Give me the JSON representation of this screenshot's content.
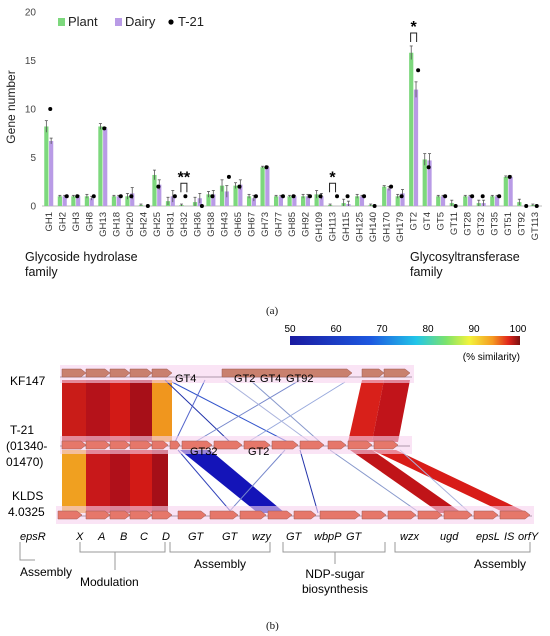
{
  "panel_a": {
    "caption": "(a)",
    "family_left": "Glycoside hydrolase family",
    "family_left_line1": "Glycoside hydrolase",
    "family_left_line2": "family",
    "family_right_line1": "Glycosyltransferase",
    "family_right_line2": "family"
  },
  "panel_b": {
    "caption": "(b)",
    "scale_label": "(% similarity)",
    "scale_ticks": [
      "50",
      "60",
      "70",
      "80",
      "90",
      "100"
    ],
    "strains": [
      {
        "name": "KF147"
      },
      {
        "name": "T-21",
        "sub1": "(01340-",
        "sub2": "01470)"
      },
      {
        "name": "KLDS",
        "sub1": "4.0325"
      }
    ],
    "kf147_gt_labels": [
      "GT4",
      "GT2",
      "GT4",
      "GT92"
    ],
    "t21_gt_labels": [
      "GT32",
      "GT2"
    ],
    "gene_labels": [
      "epsR",
      "X",
      "A",
      "B",
      "C",
      "D",
      "GT",
      "GT",
      "wzy",
      "GT",
      "wbpP",
      "GT",
      "wzx",
      "ugd",
      "epsL",
      "IS",
      "orfY"
    ],
    "function_groups": [
      "Assembly",
      "Modulation",
      "Assembly",
      "NDP-sugar biosynthesis",
      "Assembly"
    ],
    "ndp_line1": "NDP-sugar",
    "ndp_line2": "biosynthesis"
  },
  "chart_data": {
    "type": "bar",
    "ylabel": "Gene number",
    "ylim": [
      0,
      20
    ],
    "yticks": [
      0,
      5,
      10,
      15,
      20
    ],
    "categories": [
      "GH1",
      "GH2",
      "GH3",
      "GH8",
      "GH13",
      "GH18",
      "GH20",
      "GH24",
      "GH25",
      "GH31",
      "GH32",
      "GH36",
      "GH38",
      "GH43",
      "GH65",
      "GH67",
      "GH73",
      "GH77",
      "GH85",
      "GH92",
      "GH109",
      "GH113",
      "GH115",
      "GH125",
      "GH140",
      "GH170",
      "GH179",
      "GT2",
      "GT4",
      "GT5",
      "GT11",
      "GT28",
      "GT32",
      "GT35",
      "GT51",
      "GT92",
      "GT113"
    ],
    "series": [
      {
        "name": "Plant",
        "color": "#7dd87d",
        "values": [
          8.2,
          1,
          1,
          1,
          8.2,
          1,
          1,
          0.1,
          3.2,
          0.5,
          0.1,
          0.4,
          1.2,
          2.1,
          2.1,
          1,
          4,
          1,
          1,
          1,
          1.2,
          0.1,
          0.3,
          1,
          0.1,
          2,
          1,
          15.8,
          4.8,
          1,
          0.3,
          1,
          0.3,
          1,
          3,
          0.4,
          0.1
        ],
        "errors": [
          0.6,
          0.1,
          0.1,
          0.2,
          0.3,
          0.1,
          0.3,
          0.1,
          0.5,
          0.4,
          0.1,
          0.5,
          0.3,
          0.6,
          0.3,
          0.2,
          0.1,
          0.1,
          0.1,
          0.2,
          0.4,
          0.1,
          0.4,
          0.2,
          0.1,
          0.1,
          0.2,
          0.7,
          0.6,
          0.1,
          0.3,
          0.1,
          0.3,
          0.1,
          0.1,
          0.3,
          0.1
        ]
      },
      {
        "name": "Dairy",
        "color": "#b99be6",
        "values": [
          6.7,
          1,
          1,
          0.8,
          8,
          1,
          1.3,
          0,
          2.2,
          1,
          0,
          0.8,
          1.2,
          1.5,
          2.2,
          0.8,
          4,
          1,
          1,
          1,
          1,
          0,
          0.2,
          1,
          0,
          1.8,
          1.3,
          12,
          4.7,
          1,
          0,
          1,
          0.3,
          1,
          3,
          0,
          0
        ],
        "errors": [
          0.3,
          0.1,
          0.1,
          0.2,
          0.1,
          0.1,
          0.6,
          0,
          0.5,
          0.6,
          0,
          0.5,
          0.4,
          0.6,
          0.5,
          0.3,
          0.1,
          0.1,
          0.1,
          0.2,
          0.3,
          0,
          0.3,
          0.1,
          0,
          0.2,
          0.4,
          0.8,
          0.7,
          0.1,
          0,
          0.1,
          0.3,
          0.1,
          0.1,
          0,
          0
        ]
      },
      {
        "name": "T-21",
        "color": "#000000",
        "values": [
          10,
          1,
          1,
          1,
          8,
          1,
          1,
          0,
          2,
          1,
          1,
          0,
          1,
          3,
          2,
          1,
          4,
          1,
          1,
          1,
          1,
          1,
          1,
          1,
          0,
          2,
          1,
          14,
          4,
          1,
          0,
          1,
          1,
          1,
          3,
          0,
          0
        ]
      }
    ],
    "significance": [
      {
        "category": "GH32",
        "label": "**"
      },
      {
        "category": "GH113",
        "label": "*"
      },
      {
        "category": "GT2",
        "label": "*"
      }
    ],
    "legend_position": "top-left",
    "grid": false
  }
}
